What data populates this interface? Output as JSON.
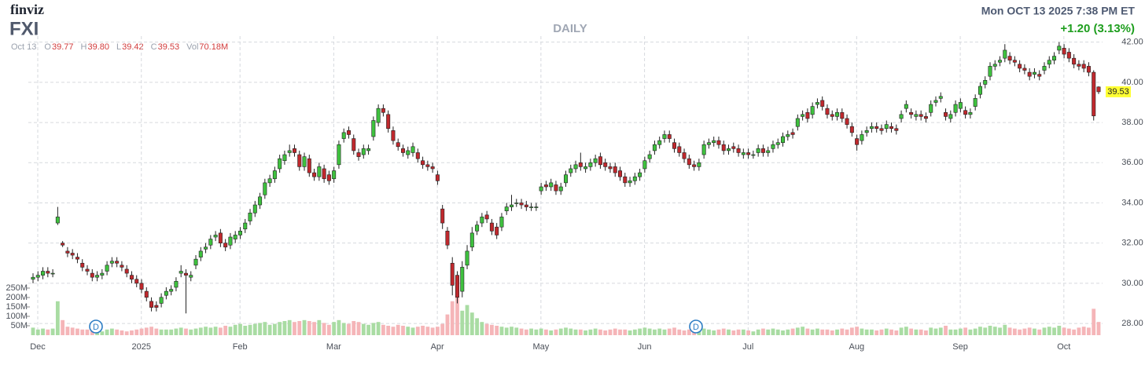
{
  "header": {
    "logo": "finviz",
    "ticker": "FXI",
    "timeframe": "DAILY",
    "datetime": "Mon OCT 13 2025 7:38 PM ET",
    "change": "+1.20 (3.13%)",
    "quote": {
      "date": "Oct 13",
      "fields": [
        {
          "name": "O",
          "value": "39.77"
        },
        {
          "name": "H",
          "value": "39.80"
        },
        {
          "name": "L",
          "value": "39.42"
        },
        {
          "name": "C",
          "value": "39.53"
        },
        {
          "name": "Vol",
          "value": "70.18M"
        }
      ]
    },
    "markers": [
      "D",
      "D"
    ]
  },
  "chart_data": {
    "type": "candlestick",
    "categories": [
      "Dec",
      null,
      null,
      null,
      null,
      null,
      null,
      null,
      null,
      null,
      null,
      null,
      null,
      null,
      null,
      null,
      null,
      null,
      null,
      null,
      null,
      "2025",
      null,
      null,
      null,
      null,
      null,
      null,
      null,
      null,
      null,
      null,
      null,
      null,
      null,
      null,
      null,
      null,
      null,
      null,
      null,
      "Feb",
      null,
      null,
      null,
      null,
      null,
      null,
      null,
      null,
      null,
      null,
      null,
      null,
      null,
      null,
      null,
      null,
      null,
      null,
      "Mar",
      null,
      null,
      null,
      null,
      null,
      null,
      null,
      null,
      null,
      null,
      null,
      null,
      null,
      null,
      null,
      null,
      null,
      null,
      null,
      null,
      "Apr",
      null,
      null,
      null,
      null,
      null,
      null,
      null,
      null,
      null,
      null,
      null,
      null,
      null,
      null,
      null,
      null,
      null,
      null,
      null,
      null,
      "May",
      null,
      null,
      null,
      null,
      null,
      null,
      null,
      null,
      null,
      null,
      null,
      null,
      null,
      null,
      null,
      null,
      null,
      null,
      null,
      null,
      "Jun",
      null,
      null,
      null,
      null,
      null,
      null,
      null,
      null,
      null,
      null,
      null,
      null,
      null,
      null,
      null,
      null,
      null,
      null,
      null,
      null,
      "Jul",
      null,
      null,
      null,
      null,
      null,
      null,
      null,
      null,
      null,
      null,
      null,
      null,
      null,
      null,
      null,
      null,
      null,
      null,
      null,
      null,
      null,
      "Aug",
      null,
      null,
      null,
      null,
      null,
      null,
      null,
      null,
      null,
      null,
      null,
      null,
      null,
      null,
      null,
      null,
      null,
      null,
      null,
      null,
      "Sep",
      null,
      null,
      null,
      null,
      null,
      null,
      null,
      null,
      null,
      null,
      null,
      null,
      null,
      null,
      null,
      null,
      null,
      null,
      null,
      null,
      "Oct",
      null,
      null,
      null,
      null,
      null,
      null,
      null,
      null
    ],
    "open": [
      30.2,
      30.3,
      30.4,
      30.6,
      30.5,
      33.0,
      32.0,
      31.6,
      31.5,
      31.3,
      31.0,
      30.7,
      30.5,
      30.3,
      30.4,
      30.6,
      31.0,
      31.1,
      30.9,
      30.7,
      30.4,
      30.2,
      30.0,
      29.6,
      29.1,
      28.9,
      29.0,
      29.4,
      29.6,
      29.8,
      30.5,
      30.5,
      30.3,
      30.9,
      31.3,
      31.7,
      31.9,
      32.3,
      32.5,
      32.0,
      31.9,
      32.2,
      32.4,
      32.7,
      33.1,
      33.5,
      33.9,
      34.4,
      35.0,
      35.2,
      35.7,
      36.1,
      36.5,
      36.7,
      36.4,
      35.8,
      36.2,
      35.5,
      35.3,
      35.7,
      35.4,
      35.2,
      35.9,
      37.2,
      37.6,
      37.2,
      36.5,
      36.4,
      36.6,
      37.3,
      38.0,
      38.7,
      38.4,
      37.6,
      37.0,
      36.7,
      36.4,
      36.5,
      36.5,
      36.1,
      35.9,
      35.8,
      35.4,
      33.7,
      32.6,
      31.0,
      30.4,
      29.6,
      30.9,
      31.8,
      32.6,
      33.0,
      33.4,
      33.0,
      32.8,
      32.8,
      33.6,
      33.8,
      34.0,
      34.0,
      33.9,
      33.8,
      33.8,
      34.6,
      34.9,
      34.8,
      34.9,
      34.6,
      35.0,
      35.5,
      35.7,
      36.0,
      35.7,
      35.8,
      36.0,
      36.3,
      36.0,
      35.8,
      35.8,
      35.6,
      35.3,
      35.0,
      35.1,
      35.3,
      35.7,
      36.2,
      36.6,
      36.9,
      37.2,
      37.4,
      37.0,
      36.8,
      36.5,
      36.2,
      35.9,
      35.8,
      36.4,
      36.9,
      37.0,
      37.1,
      36.9,
      36.6,
      36.8,
      36.7,
      36.4,
      36.5,
      36.4,
      36.5,
      36.7,
      36.5,
      36.7,
      36.9,
      37.0,
      37.3,
      37.5,
      37.8,
      38.3,
      38.5,
      38.4,
      38.9,
      39.1,
      38.7,
      38.4,
      38.3,
      38.5,
      38.2,
      37.8,
      37.2,
      37.1,
      37.5,
      37.7,
      37.8,
      37.7,
      37.7,
      37.8,
      37.7,
      38.2,
      38.7,
      38.5,
      38.3,
      38.4,
      38.3,
      38.5,
      39.0,
      39.2,
      38.5,
      38.2,
      38.5,
      38.7,
      38.6,
      38.4,
      38.8,
      39.4,
      39.9,
      40.3,
      40.8,
      41.0,
      41.2,
      41.3,
      41.1,
      40.9,
      40.7,
      40.5,
      40.4,
      40.4,
      40.6,
      40.9,
      41.1,
      41.6,
      41.7,
      41.5,
      41.2,
      40.9,
      40.9,
      40.8,
      40.5,
      39.77
    ],
    "high": [
      30.5,
      30.6,
      30.8,
      30.8,
      30.7,
      33.8,
      32.1,
      31.8,
      31.7,
      31.5,
      31.2,
      30.9,
      30.7,
      30.6,
      30.7,
      31.1,
      31.3,
      31.3,
      31.1,
      30.9,
      30.6,
      30.4,
      30.2,
      29.8,
      29.3,
      29.1,
      29.5,
      29.8,
      29.9,
      30.3,
      30.9,
      30.7,
      30.6,
      31.4,
      31.8,
      32.0,
      32.4,
      32.6,
      32.7,
      32.2,
      32.5,
      32.6,
      32.8,
      33.2,
      33.7,
      34.1,
      34.5,
      35.2,
      35.4,
      35.8,
      36.4,
      36.6,
      36.9,
      36.9,
      36.6,
      36.5,
      36.4,
      35.7,
      36.0,
      35.9,
      35.6,
      35.8,
      37.1,
      37.7,
      37.8,
      37.4,
      36.7,
      36.9,
      36.9,
      38.3,
      38.9,
      38.9,
      38.6,
      37.8,
      37.2,
      36.9,
      36.8,
      37.0,
      36.7,
      36.3,
      36.1,
      36.0,
      35.6,
      33.9,
      32.8,
      31.3,
      30.6,
      31.1,
      31.9,
      32.8,
      33.1,
      33.5,
      33.6,
      33.2,
      33.0,
      33.5,
      34.0,
      34.4,
      34.2,
      34.2,
      34.1,
      34.0,
      34.0,
      35.0,
      35.1,
      35.2,
      35.1,
      35.0,
      35.6,
      35.9,
      36.1,
      36.5,
      36.0,
      36.2,
      36.4,
      36.5,
      36.2,
      36.0,
      36.0,
      35.8,
      35.5,
      35.3,
      35.5,
      35.7,
      36.3,
      36.6,
      37.1,
      37.3,
      37.6,
      37.6,
      37.2,
      37.0,
      36.7,
      36.4,
      36.1,
      36.2,
      37.1,
      37.2,
      37.3,
      37.3,
      37.1,
      36.9,
      37.0,
      36.9,
      36.7,
      36.7,
      36.6,
      36.9,
      36.9,
      36.8,
      37.1,
      37.2,
      37.5,
      37.6,
      37.7,
      38.4,
      38.6,
      38.7,
      39.0,
      39.2,
      39.3,
      38.9,
      38.6,
      38.7,
      38.7,
      38.4,
      38.0,
      37.4,
      37.6,
      37.8,
      38.0,
      38.0,
      37.9,
      38.1,
      38.0,
      37.9,
      38.6,
      39.1,
      38.7,
      38.6,
      38.6,
      38.5,
      39.1,
      39.3,
      39.5,
      38.7,
      38.6,
      39.1,
      39.2,
      38.8,
      38.7,
      39.4,
      40.0,
      40.3,
      41.0,
      41.1,
      41.3,
      41.9,
      41.5,
      41.3,
      41.1,
      40.9,
      40.7,
      40.7,
      40.6,
      41.0,
      41.3,
      41.5,
      42.0,
      41.9,
      41.7,
      41.4,
      41.1,
      41.1,
      41.0,
      40.6,
      39.8
    ],
    "low": [
      30.0,
      30.1,
      30.2,
      30.3,
      30.3,
      32.9,
      31.8,
      31.3,
      31.2,
      31.0,
      30.6,
      30.4,
      30.1,
      30.1,
      30.2,
      30.4,
      30.8,
      30.8,
      30.6,
      30.3,
      30.0,
      29.8,
      29.5,
      29.1,
      28.6,
      28.6,
      28.8,
      29.2,
      29.4,
      29.6,
      30.3,
      28.5,
      30.1,
      30.7,
      31.1,
      31.5,
      31.7,
      32.1,
      31.8,
      31.6,
      31.7,
      32.0,
      32.2,
      32.5,
      32.9,
      33.3,
      33.7,
      34.2,
      34.8,
      35.0,
      35.5,
      35.9,
      36.3,
      36.3,
      35.6,
      35.6,
      35.3,
      35.1,
      35.1,
      35.0,
      34.9,
      35.0,
      35.7,
      37.0,
      37.2,
      36.4,
      36.1,
      36.2,
      36.4,
      37.1,
      37.8,
      38.3,
      37.5,
      36.9,
      36.6,
      36.3,
      36.2,
      36.3,
      36.0,
      35.7,
      35.6,
      35.5,
      34.9,
      32.7,
      31.7,
      29.4,
      29.0,
      29.3,
      30.7,
      31.6,
      32.4,
      32.8,
      33.0,
      32.4,
      32.2,
      32.6,
      33.4,
      33.6,
      33.8,
      33.7,
      33.6,
      33.6,
      33.6,
      34.4,
      34.6,
      34.6,
      34.4,
      34.4,
      34.8,
      35.3,
      35.5,
      35.6,
      35.5,
      35.6,
      35.8,
      35.7,
      35.6,
      35.5,
      35.3,
      35.1,
      34.8,
      34.8,
      34.9,
      35.1,
      35.5,
      36.0,
      36.4,
      36.7,
      37.0,
      37.0,
      36.5,
      36.3,
      36.0,
      35.7,
      35.6,
      35.6,
      36.2,
      36.7,
      36.8,
      36.7,
      36.4,
      36.4,
      36.5,
      36.3,
      36.2,
      36.2,
      36.2,
      36.3,
      36.3,
      36.3,
      36.5,
      36.7,
      36.8,
      37.1,
      37.2,
      37.6,
      38.1,
      38.0,
      38.2,
      38.7,
      38.6,
      38.2,
      38.1,
      38.1,
      38.0,
      37.7,
      37.3,
      36.6,
      36.9,
      37.3,
      37.5,
      37.5,
      37.4,
      37.5,
      37.5,
      37.4,
      38.0,
      38.5,
      38.2,
      38.1,
      38.1,
      38.0,
      38.3,
      38.8,
      39.0,
      38.1,
      38.0,
      38.3,
      38.5,
      38.2,
      38.2,
      38.6,
      39.2,
      39.7,
      40.1,
      40.6,
      40.8,
      41.0,
      40.9,
      40.8,
      40.5,
      40.4,
      40.1,
      40.2,
      40.1,
      40.4,
      40.7,
      40.9,
      41.4,
      41.2,
      41.0,
      40.7,
      40.6,
      40.5,
      40.3,
      38.1,
      39.42
    ],
    "close": [
      30.3,
      30.4,
      30.6,
      30.5,
      30.5,
      33.3,
      31.9,
      31.5,
      31.4,
      31.2,
      30.8,
      30.6,
      30.3,
      30.4,
      30.5,
      30.9,
      31.1,
      31.0,
      30.8,
      30.5,
      30.2,
      30.0,
      29.7,
      29.3,
      28.8,
      28.8,
      29.3,
      29.6,
      29.7,
      30.1,
      30.6,
      30.4,
      30.4,
      31.2,
      31.6,
      31.8,
      32.2,
      32.4,
      32.0,
      31.8,
      32.3,
      32.4,
      32.6,
      33.0,
      33.5,
      33.9,
      34.3,
      35.0,
      35.2,
      35.6,
      36.2,
      36.4,
      36.6,
      36.5,
      35.8,
      36.3,
      35.5,
      35.3,
      35.8,
      35.2,
      35.1,
      35.6,
      36.9,
      37.5,
      37.4,
      36.6,
      36.3,
      36.7,
      36.7,
      38.1,
      38.7,
      38.5,
      37.7,
      37.1,
      36.8,
      36.5,
      36.6,
      36.8,
      36.2,
      35.9,
      35.8,
      35.7,
      35.1,
      33.0,
      31.9,
      29.9,
      29.3,
      30.8,
      31.6,
      32.5,
      32.9,
      33.3,
      33.2,
      32.6,
      32.4,
      33.3,
      33.8,
      33.9,
      34.0,
      33.9,
      33.8,
      33.8,
      33.8,
      34.8,
      34.8,
      35.0,
      34.6,
      34.8,
      35.4,
      35.7,
      35.9,
      35.8,
      35.8,
      36.0,
      36.2,
      35.9,
      35.8,
      35.7,
      35.5,
      35.3,
      35.0,
      35.1,
      35.3,
      35.5,
      36.1,
      36.4,
      36.9,
      37.1,
      37.4,
      37.2,
      36.7,
      36.5,
      36.2,
      35.9,
      35.8,
      36.0,
      36.9,
      37.0,
      37.1,
      36.9,
      36.6,
      36.7,
      36.7,
      36.5,
      36.5,
      36.4,
      36.4,
      36.7,
      36.5,
      36.6,
      36.9,
      37.0,
      37.3,
      37.4,
      37.4,
      38.2,
      38.4,
      38.2,
      38.8,
      39.0,
      38.8,
      38.4,
      38.3,
      38.5,
      38.2,
      37.9,
      37.5,
      36.9,
      37.4,
      37.6,
      37.8,
      37.7,
      37.6,
      37.9,
      37.7,
      37.6,
      38.4,
      38.9,
      38.4,
      38.4,
      38.3,
      38.2,
      38.9,
      39.1,
      39.3,
      38.3,
      38.4,
      38.9,
      39.0,
      38.4,
      38.5,
      39.2,
      39.8,
      40.1,
      40.8,
      40.9,
      41.1,
      41.6,
      41.1,
      41.0,
      40.7,
      40.6,
      40.3,
      40.5,
      40.3,
      40.8,
      41.1,
      41.3,
      41.8,
      41.4,
      41.2,
      40.9,
      40.8,
      40.7,
      40.5,
      38.33,
      39.53
    ],
    "volume": [
      40,
      30,
      35,
      30,
      35,
      180,
      80,
      45,
      40,
      35,
      30,
      30,
      30,
      25,
      20,
      30,
      35,
      30,
      25,
      20,
      25,
      30,
      35,
      40,
      45,
      35,
      30,
      30,
      30,
      35,
      40,
      35,
      30,
      35,
      40,
      45,
      40,
      45,
      40,
      50,
      45,
      55,
      60,
      50,
      55,
      60,
      65,
      70,
      55,
      60,
      70,
      75,
      80,
      70,
      75,
      80,
      75,
      70,
      80,
      65,
      55,
      70,
      80,
      65,
      60,
      75,
      70,
      60,
      55,
      65,
      70,
      55,
      50,
      45,
      55,
      50,
      45,
      40,
      45,
      50,
      45,
      40,
      45,
      60,
      110,
      180,
      220,
      130,
      160,
      120,
      90,
      70,
      60,
      55,
      50,
      45,
      40,
      45,
      40,
      35,
      30,
      35,
      30,
      35,
      30,
      25,
      30,
      35,
      40,
      35,
      30,
      30,
      25,
      30,
      35,
      30,
      25,
      30,
      35,
      30,
      30,
      25,
      30,
      35,
      40,
      35,
      30,
      35,
      30,
      35,
      40,
      30,
      25,
      30,
      35,
      30,
      35,
      30,
      25,
      30,
      35,
      30,
      25,
      30,
      30,
      25,
      20,
      30,
      35,
      30,
      35,
      30,
      25,
      30,
      35,
      40,
      45,
      35,
      30,
      35,
      30,
      30,
      25,
      30,
      35,
      30,
      40,
      45,
      35,
      30,
      30,
      25,
      30,
      35,
      30,
      25,
      40,
      45,
      35,
      30,
      30,
      25,
      40,
      35,
      40,
      50,
      30,
      30,
      35,
      40,
      30,
      35,
      45,
      40,
      50,
      45,
      40,
      55,
      40,
      35,
      30,
      35,
      40,
      35,
      30,
      40,
      45,
      40,
      50,
      40,
      35,
      30,
      40,
      45,
      40,
      140,
      70.18
    ],
    "up_color": "#3ec13e",
    "down_color": "#c0282d",
    "volume_up_color": "#a9dca3",
    "volume_down_color": "#f5b5b8",
    "ylim": [
      27.3,
      42.3
    ],
    "yticks": [
      {
        "value": 28,
        "label": "28.00"
      },
      {
        "value": 30,
        "label": "30.00"
      },
      {
        "value": 32,
        "label": "32.00"
      },
      {
        "value": 34,
        "label": "34.00"
      },
      {
        "value": 36,
        "label": "36.00"
      },
      {
        "value": 38,
        "label": "38.00"
      },
      {
        "value": 40,
        "label": "40.00"
      },
      {
        "value": 42,
        "label": "42.00"
      }
    ],
    "y2lim": [
      0,
      250
    ],
    "y2ticks": [
      {
        "value": 50,
        "label": "50M"
      },
      {
        "value": 100,
        "label": "100M"
      },
      {
        "value": 150,
        "label": "150M"
      },
      {
        "value": 200,
        "label": "200M"
      },
      {
        "value": 250,
        "label": "250M"
      }
    ],
    "grid": true
  }
}
